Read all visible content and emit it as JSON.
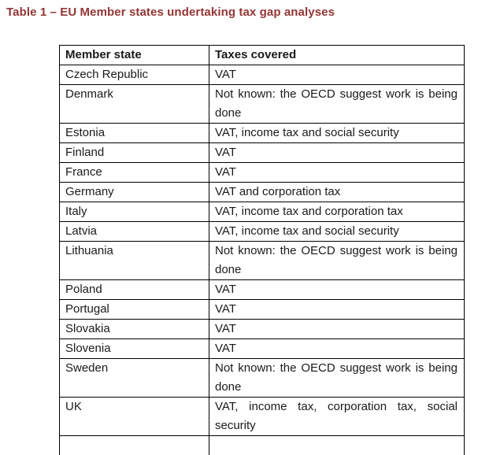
{
  "title": "Table 1 – EU Member states undertaking tax gap analyses",
  "colors": {
    "title": "#943634",
    "text": "#1a1a1a",
    "border": "#000000"
  },
  "table": {
    "headers": [
      "Member state",
      "Taxes covered"
    ],
    "rows": [
      {
        "state": "Czech Republic",
        "taxes": "VAT"
      },
      {
        "state": "Denmark",
        "taxes": "Not known: the OECD suggest work is being done"
      },
      {
        "state": "Estonia",
        "taxes": "VAT, income tax and social security"
      },
      {
        "state": "Finland",
        "taxes": "VAT"
      },
      {
        "state": "France",
        "taxes": "VAT"
      },
      {
        "state": "Germany",
        "taxes": "VAT and corporation tax"
      },
      {
        "state": "Italy",
        "taxes": "VAT, income tax and corporation tax"
      },
      {
        "state": "Latvia",
        "taxes": "VAT, income tax and social security"
      },
      {
        "state": "Lithuania",
        "taxes": "Not known: the OECD suggest work is being done"
      },
      {
        "state": "Poland",
        "taxes": "VAT"
      },
      {
        "state": "Portugal",
        "taxes": "VAT"
      },
      {
        "state": "Slovakia",
        "taxes": "VAT"
      },
      {
        "state": "Slovenia",
        "taxes": "VAT"
      },
      {
        "state": "Sweden",
        "taxes": "Not known: the OECD suggest work is being done"
      },
      {
        "state": "UK",
        "taxes": "VAT, income tax, corporation tax, social security"
      }
    ]
  }
}
